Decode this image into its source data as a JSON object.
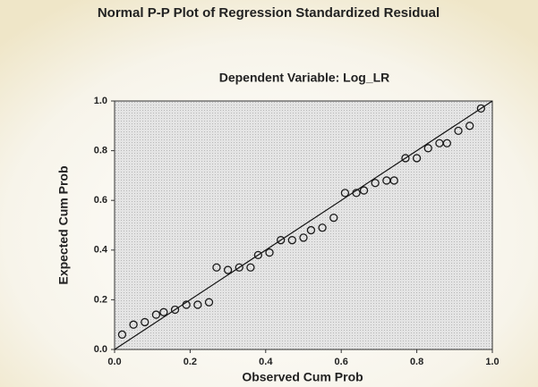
{
  "chart_data": {
    "type": "scatter",
    "title": "Normal P-P Plot of Regression Standardized Residual",
    "subtitle": "Dependent Variable: Log_LR",
    "x_label": "Observed Cum Prob",
    "y_label": "Expected Cum Prob",
    "x": [
      0.02,
      0.05,
      0.08,
      0.11,
      0.13,
      0.16,
      0.19,
      0.22,
      0.25,
      0.27,
      0.3,
      0.33,
      0.36,
      0.38,
      0.41,
      0.44,
      0.47,
      0.5,
      0.52,
      0.55,
      0.58,
      0.61,
      0.64,
      0.66,
      0.69,
      0.72,
      0.74,
      0.77,
      0.8,
      0.83,
      0.86,
      0.88,
      0.91,
      0.94,
      0.97
    ],
    "values": [
      0.06,
      0.1,
      0.11,
      0.14,
      0.15,
      0.16,
      0.18,
      0.18,
      0.19,
      0.33,
      0.32,
      0.33,
      0.33,
      0.38,
      0.39,
      0.44,
      0.44,
      0.45,
      0.48,
      0.49,
      0.53,
      0.63,
      0.63,
      0.64,
      0.67,
      0.68,
      0.68,
      0.77,
      0.77,
      0.81,
      0.83,
      0.83,
      0.88,
      0.9,
      0.97
    ],
    "color": "#1a1a1a",
    "xlim": [
      0,
      1
    ],
    "ylim": [
      0,
      1
    ],
    "xticks": [
      {
        "value": 0,
        "label": "0.0"
      },
      0.2,
      0.4,
      0.6,
      0.8,
      {
        "value": 1,
        "label": "1.0"
      }
    ],
    "yticks": [
      {
        "value": 0,
        "label": "0.0"
      },
      0.2,
      0.4,
      0.6,
      0.8,
      {
        "value": 1,
        "label": "1.0"
      }
    ]
  }
}
